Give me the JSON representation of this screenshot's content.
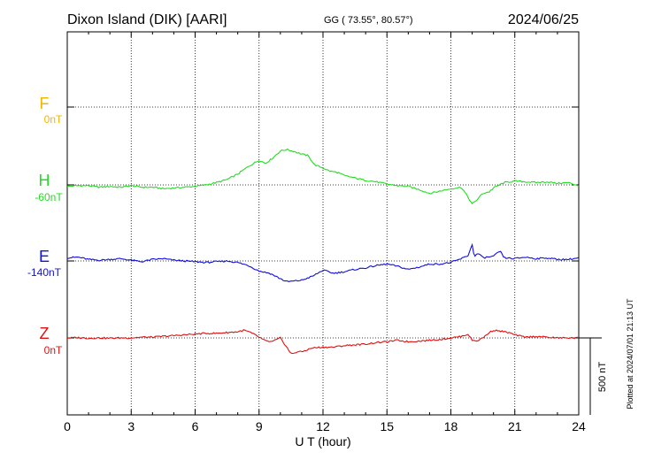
{
  "header": {
    "station": "Dixon Island (DIK)  [AARI]",
    "coords": "GG ( 73.55°,  80.57°)",
    "date": "2024/06/25"
  },
  "plotted_note": "Plotted at 2024/07/01 21:13 UT",
  "colors": {
    "F": "#f2b600",
    "H": "#22dd22",
    "E": "#1010e0",
    "Z": "#e01010"
  },
  "chart_data": {
    "type": "line",
    "xlabel": "U T (hour)",
    "xlim": [
      0,
      24
    ],
    "x_ticks": [
      "0",
      "3",
      "6",
      "9",
      "12",
      "15",
      "18",
      "21",
      "24"
    ],
    "scale_bar_label": "500 nT",
    "scale_bar_nT": 500,
    "channels": [
      {
        "name": "F",
        "baseline_label": "0nT",
        "color": "#f2b600"
      },
      {
        "name": "H",
        "baseline_label": "-60nT",
        "color": "#22dd22"
      },
      {
        "name": "E",
        "baseline_label": "-140nT",
        "color": "#1010e0"
      },
      {
        "name": "Z",
        "baseline_label": "0nT",
        "color": "#e01010"
      }
    ],
    "series": [
      {
        "name": "H",
        "x": [
          0,
          0.5,
          1,
          1.5,
          2,
          2.5,
          3,
          3.5,
          4,
          4.5,
          5,
          5.5,
          6,
          6.5,
          7,
          7.5,
          8,
          8.5,
          9,
          9.3,
          9.6,
          10,
          10.3,
          10.7,
          11,
          11.3,
          11.6,
          12,
          12.3,
          12.7,
          13,
          13.5,
          14,
          14.5,
          15,
          15.5,
          16,
          16.5,
          17,
          17.5,
          18,
          18.5,
          18.8,
          19,
          19.2,
          19.5,
          19.8,
          20,
          20.5,
          21,
          21.5,
          22,
          22.5,
          23,
          23.5,
          24
        ],
        "y": [
          -10,
          -5,
          -5,
          -15,
          -10,
          -15,
          -5,
          -15,
          -15,
          -25,
          -20,
          -15,
          -10,
          0,
          15,
          35,
          70,
          120,
          160,
          140,
          170,
          220,
          230,
          215,
          200,
          190,
          130,
          110,
          90,
          80,
          60,
          45,
          30,
          20,
          5,
          -5,
          -10,
          -30,
          -55,
          -40,
          -25,
          -15,
          -80,
          -125,
          -100,
          -55,
          -45,
          -20,
          15,
          25,
          20,
          15,
          20,
          10,
          15,
          -5
        ]
      },
      {
        "name": "E",
        "x": [
          0,
          0.5,
          1,
          1.5,
          2,
          2.5,
          3,
          3.5,
          4,
          4.5,
          5,
          5.5,
          6,
          6.5,
          7,
          7.5,
          8,
          8.5,
          9,
          9.5,
          10,
          10.3,
          10.7,
          11,
          11.5,
          12,
          12.5,
          13,
          13.5,
          14,
          14.5,
          15,
          15.5,
          16,
          16.5,
          17,
          17.5,
          18,
          18.5,
          18.8,
          19,
          19.1,
          19.3,
          19.5,
          20,
          20.3,
          20.5,
          21,
          21.5,
          22,
          22.5,
          23,
          23.5,
          24
        ],
        "y": [
          20,
          25,
          10,
          5,
          10,
          15,
          5,
          -5,
          10,
          15,
          5,
          0,
          -5,
          -10,
          -5,
          0,
          -10,
          -30,
          -65,
          -80,
          -115,
          -135,
          -130,
          -125,
          -100,
          -60,
          -80,
          -70,
          -55,
          -45,
          -30,
          -20,
          -35,
          -55,
          -40,
          -20,
          -20,
          -10,
          15,
          35,
          105,
          30,
          50,
          20,
          30,
          65,
          20,
          15,
          25,
          15,
          20,
          10,
          10,
          20
        ]
      },
      {
        "name": "Z",
        "x": [
          0,
          0.5,
          1,
          1.5,
          2,
          2.5,
          3,
          3.5,
          4,
          4.5,
          5,
          5.5,
          6,
          6.5,
          7,
          7.5,
          8,
          8.3,
          8.6,
          9,
          9.3,
          9.6,
          10,
          10.3,
          10.5,
          10.8,
          11,
          11.5,
          12,
          12.5,
          13,
          13.5,
          14,
          14.5,
          15,
          15.5,
          16,
          16.5,
          17,
          17.5,
          18,
          18.5,
          18.8,
          19,
          19.2,
          19.5,
          19.8,
          20,
          20.3,
          20.7,
          21,
          21.3,
          21.5,
          22,
          22.5,
          23,
          23.5,
          24
        ],
        "y": [
          0,
          2,
          -2,
          0,
          -2,
          0,
          0,
          5,
          5,
          10,
          15,
          20,
          25,
          30,
          30,
          35,
          40,
          50,
          35,
          5,
          -20,
          -25,
          0,
          -60,
          -105,
          -90,
          -90,
          -65,
          -60,
          -60,
          -50,
          -45,
          -40,
          -30,
          -25,
          -15,
          -25,
          -20,
          -15,
          -10,
          0,
          10,
          25,
          -15,
          -20,
          0,
          35,
          50,
          45,
          35,
          20,
          10,
          5,
          10,
          5,
          0,
          0,
          0
        ]
      }
    ]
  }
}
